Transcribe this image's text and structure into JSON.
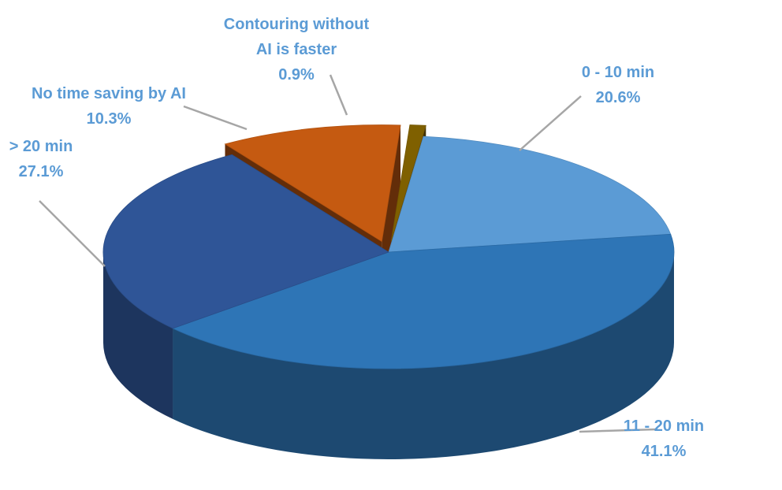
{
  "chart_data": {
    "type": "pie",
    "three_d": true,
    "title": "",
    "series": [
      {
        "values": [
          20.6,
          41.1,
          27.1,
          10.3,
          0.9
        ],
        "categories": [
          "0 - 10 min",
          "11 - 20 min",
          "> 20 min",
          "No time saving by AI",
          "Contouring without AI is faster"
        ],
        "labels": [
          "20.6%",
          "41.1%",
          "27.1%",
          "10.3%",
          "0.9%"
        ],
        "label_lines": [
          [
            "0 - 10 min"
          ],
          [
            "11 - 20 min"
          ],
          [
            "> 20 min"
          ],
          [
            "No time saving by AI"
          ],
          [
            "Contouring without",
            "AI is faster"
          ]
        ],
        "colors": [
          "#5B9BD5",
          "#2E75B6",
          "#2F5597",
          "#C55A11",
          "#7F6000"
        ],
        "exploded": [
          false,
          false,
          false,
          true,
          true
        ]
      }
    ],
    "label_color": "#5B9BD5",
    "leader_line_color": "#A6A6A6",
    "legend": "none",
    "grid": false
  }
}
